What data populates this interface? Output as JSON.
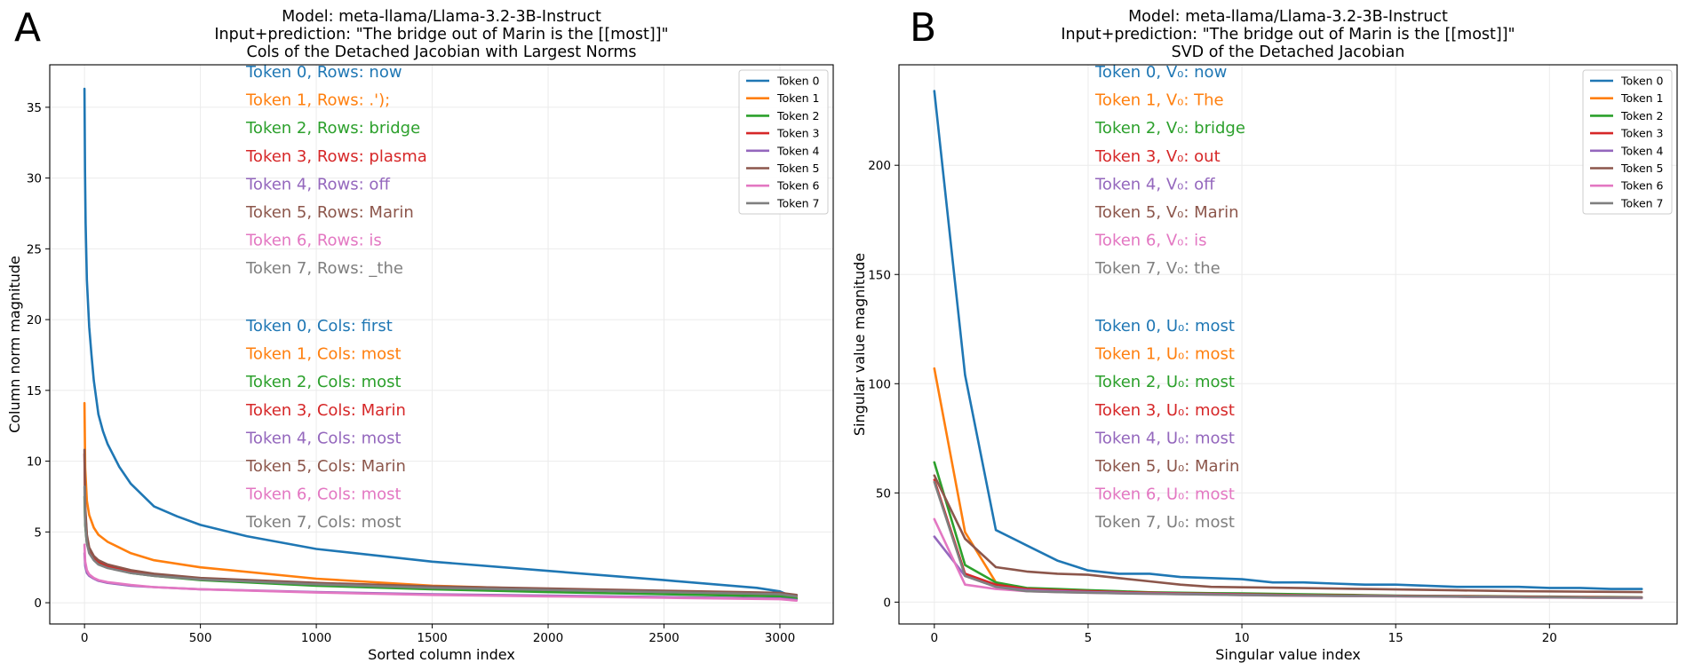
{
  "figure": {
    "panels": [
      "A",
      "B"
    ]
  },
  "chart_data": [
    {
      "type": "line",
      "panel_label": "A",
      "title": [
        "Model: meta-llama/Llama-3.2-3B-Instruct",
        "Input+prediction: \"The bridge out of Marin is the [[most]]\"",
        "Cols of the Detached Jacobian with Largest Norms"
      ],
      "xlabel": "Sorted column index",
      "ylabel": "Column norm magnitude",
      "xlim": [
        -150,
        3230
      ],
      "ylim": [
        -1.5,
        38
      ],
      "xticks": [
        0,
        500,
        1000,
        1500,
        2000,
        2500,
        3000
      ],
      "yticks": [
        0,
        5,
        10,
        15,
        20,
        25,
        30,
        35
      ],
      "grid": true,
      "legend": "top-right",
      "series": [
        {
          "name": "Token 0",
          "color": "#1f77b4",
          "x": [
            0,
            2,
            5,
            10,
            20,
            30,
            40,
            60,
            80,
            100,
            150,
            200,
            300,
            400,
            500,
            700,
            1000,
            1500,
            2000,
            2500,
            2900,
            3000,
            3072
          ],
          "y": [
            36.3,
            30.5,
            26.8,
            22.8,
            19.5,
            17.5,
            15.7,
            13.3,
            12.1,
            11.2,
            9.6,
            8.4,
            6.8,
            6.1,
            5.5,
            4.7,
            3.8,
            2.9,
            2.25,
            1.6,
            1.05,
            0.8,
            0.3
          ]
        },
        {
          "name": "Token 1",
          "color": "#ff7f0e",
          "x": [
            0,
            3,
            10,
            20,
            40,
            60,
            100,
            200,
            300,
            500,
            1000,
            1500,
            2000,
            2500,
            3000,
            3072
          ],
          "y": [
            14.1,
            9.5,
            7.2,
            6.2,
            5.3,
            4.8,
            4.3,
            3.5,
            3.0,
            2.5,
            1.7,
            1.2,
            0.95,
            0.75,
            0.55,
            0.4
          ]
        },
        {
          "name": "Token 2",
          "color": "#2ca02c",
          "x": [
            0,
            3,
            10,
            20,
            40,
            60,
            100,
            200,
            300,
            500,
            1000,
            1500,
            2000,
            2500,
            3000,
            3072
          ],
          "y": [
            7.5,
            5.5,
            4.2,
            3.6,
            3.1,
            2.8,
            2.5,
            2.1,
            1.9,
            1.6,
            1.2,
            0.95,
            0.75,
            0.6,
            0.45,
            0.3
          ]
        },
        {
          "name": "Token 3",
          "color": "#d62728",
          "x": [
            0,
            3,
            10,
            20,
            40,
            60,
            100,
            200,
            300,
            500,
            1000,
            1500,
            2000,
            2500,
            3000,
            3072
          ],
          "y": [
            10.5,
            6.5,
            4.6,
            3.8,
            3.2,
            2.9,
            2.6,
            2.2,
            2.0,
            1.7,
            1.35,
            1.1,
            0.95,
            0.8,
            0.65,
            0.5
          ]
        },
        {
          "name": "Token 4",
          "color": "#9467bd",
          "x": [
            0,
            3,
            10,
            20,
            40,
            60,
            100,
            200,
            300,
            500,
            1000,
            1500,
            2000,
            2500,
            3000,
            3072
          ],
          "y": [
            3.5,
            2.6,
            2.1,
            1.9,
            1.7,
            1.55,
            1.4,
            1.2,
            1.1,
            0.95,
            0.75,
            0.6,
            0.5,
            0.4,
            0.3,
            0.2
          ]
        },
        {
          "name": "Token 5",
          "color": "#8c564b",
          "x": [
            0,
            3,
            10,
            20,
            40,
            60,
            100,
            200,
            300,
            500,
            1000,
            1500,
            2000,
            2500,
            3000,
            3072
          ],
          "y": [
            10.8,
            6.8,
            4.8,
            3.9,
            3.3,
            3.0,
            2.7,
            2.3,
            2.05,
            1.75,
            1.4,
            1.15,
            1.0,
            0.85,
            0.7,
            0.55
          ]
        },
        {
          "name": "Token 6",
          "color": "#e377c2",
          "x": [
            0,
            3,
            10,
            20,
            40,
            60,
            100,
            200,
            300,
            500,
            1000,
            1500,
            2000,
            2500,
            3000,
            3072
          ],
          "y": [
            4.1,
            2.9,
            2.3,
            2.0,
            1.75,
            1.6,
            1.45,
            1.25,
            1.1,
            0.95,
            0.72,
            0.55,
            0.45,
            0.35,
            0.25,
            0.15
          ]
        },
        {
          "name": "Token 7",
          "color": "#7f7f7f",
          "x": [
            0,
            3,
            10,
            20,
            40,
            60,
            100,
            200,
            300,
            500,
            1000,
            1500,
            2000,
            2500,
            3000,
            3072
          ],
          "y": [
            8.2,
            5.6,
            4.2,
            3.5,
            3.0,
            2.7,
            2.45,
            2.1,
            1.9,
            1.65,
            1.3,
            1.05,
            0.9,
            0.75,
            0.6,
            0.45
          ]
        }
      ],
      "annotations": [
        {
          "text": "Token 0, Rows: now",
          "color": "#1f77b4"
        },
        {
          "text": "Token 1, Rows: .');",
          "color": "#ff7f0e"
        },
        {
          "text": "Token 2, Rows: bridge",
          "color": "#2ca02c"
        },
        {
          "text": "Token 3, Rows: plasma",
          "color": "#d62728"
        },
        {
          "text": "Token 4, Rows: off",
          "color": "#9467bd"
        },
        {
          "text": "Token 5, Rows: Marin",
          "color": "#8c564b"
        },
        {
          "text": "Token 6, Rows: is",
          "color": "#e377c2"
        },
        {
          "text": "Token 7, Rows: _the",
          "color": "#7f7f7f"
        },
        {
          "text": "Token 0, Cols: first",
          "color": "#1f77b4"
        },
        {
          "text": "Token 1, Cols: most",
          "color": "#ff7f0e"
        },
        {
          "text": "Token 2, Cols: most",
          "color": "#2ca02c"
        },
        {
          "text": "Token 3, Cols: Marin",
          "color": "#d62728"
        },
        {
          "text": "Token 4, Cols: most",
          "color": "#9467bd"
        },
        {
          "text": "Token 5, Cols: Marin",
          "color": "#8c564b"
        },
        {
          "text": "Token 6, Cols: most",
          "color": "#e377c2"
        },
        {
          "text": "Token 7, Cols: most",
          "color": "#7f7f7f"
        }
      ]
    },
    {
      "type": "line",
      "panel_label": "B",
      "title": [
        "Model: meta-llama/Llama-3.2-3B-Instruct",
        "Input+prediction: \"The bridge out of Marin is the [[most]]\"",
        "SVD of the Detached Jacobian"
      ],
      "xlabel": "Singular value index",
      "ylabel": "Singular value magnitude",
      "xlim": [
        -1.15,
        24.15
      ],
      "ylim": [
        -10,
        246
      ],
      "xticks": [
        0,
        5,
        10,
        15,
        20
      ],
      "yticks": [
        0,
        50,
        100,
        150,
        200
      ],
      "grid": true,
      "legend": "top-right",
      "series": [
        {
          "name": "Token 0",
          "color": "#1f77b4",
          "x": [
            0,
            1,
            2,
            3,
            4,
            5,
            6,
            7,
            8,
            9,
            10,
            11,
            12,
            13,
            14,
            15,
            16,
            17,
            18,
            19,
            20,
            21,
            22,
            23
          ],
          "y": [
            234,
            104,
            33,
            26,
            19,
            14.5,
            13,
            13,
            11.5,
            11,
            10.5,
            9,
            9,
            8.5,
            8,
            8,
            7.5,
            7,
            7,
            7,
            6.5,
            6.5,
            6,
            6
          ]
        },
        {
          "name": "Token 1",
          "color": "#ff7f0e",
          "x": [
            0,
            1,
            2,
            3,
            4,
            5,
            6,
            7,
            8,
            9,
            10,
            11,
            12,
            13,
            14,
            15,
            16,
            17,
            18,
            19,
            20,
            21,
            22,
            23
          ],
          "y": [
            107,
            32,
            9,
            6,
            5.5,
            5,
            4.5,
            4,
            4,
            3.8,
            3.6,
            3.4,
            3.2,
            3,
            3,
            2.8,
            2.6,
            2.5,
            2.4,
            2.3,
            2.2,
            2.1,
            2,
            2
          ]
        },
        {
          "name": "Token 2",
          "color": "#2ca02c",
          "x": [
            0,
            1,
            2,
            3,
            4,
            5,
            6,
            7,
            8,
            9,
            10,
            11,
            12,
            13,
            14,
            15,
            16,
            17,
            18,
            19,
            20,
            21,
            22,
            23
          ],
          "y": [
            64,
            17,
            9,
            6.5,
            6,
            5.5,
            5,
            4.5,
            4.3,
            4.1,
            4,
            3.8,
            3.6,
            3.4,
            3.2,
            3,
            2.9,
            2.8,
            2.7,
            2.6,
            2.5,
            2.4,
            2.3,
            2.2
          ]
        },
        {
          "name": "Token 3",
          "color": "#d62728",
          "x": [
            0,
            1,
            2,
            3,
            4,
            5,
            6,
            7,
            8,
            9,
            10,
            11,
            12,
            13,
            14,
            15,
            16,
            17,
            18,
            19,
            20,
            21,
            22,
            23
          ],
          "y": [
            56,
            13,
            8,
            6,
            5.5,
            5,
            4.6,
            4.3,
            4,
            3.8,
            3.6,
            3.4,
            3.2,
            3.1,
            3,
            2.9,
            2.8,
            2.7,
            2.6,
            2.5,
            2.4,
            2.3,
            2.2,
            2.1
          ]
        },
        {
          "name": "Token 4",
          "color": "#9467bd",
          "x": [
            0,
            1,
            2,
            3,
            4,
            5,
            6,
            7,
            8,
            9,
            10,
            11,
            12,
            13,
            14,
            15,
            16,
            17,
            18,
            19,
            20,
            21,
            22,
            23
          ],
          "y": [
            30,
            12,
            7,
            5.5,
            5,
            4.6,
            4.3,
            4,
            3.8,
            3.6,
            3.4,
            3.2,
            3,
            2.9,
            2.8,
            2.7,
            2.6,
            2.5,
            2.4,
            2.3,
            2.2,
            2.1,
            2,
            2
          ]
        },
        {
          "name": "Token 5",
          "color": "#8c564b",
          "x": [
            0,
            1,
            2,
            3,
            4,
            5,
            6,
            7,
            8,
            9,
            10,
            11,
            12,
            13,
            14,
            15,
            16,
            17,
            18,
            19,
            20,
            21,
            22,
            23
          ],
          "y": [
            58,
            29,
            16,
            14,
            13,
            12.5,
            11,
            9.5,
            8,
            7,
            6.8,
            6.6,
            6.4,
            6.2,
            6,
            5.8,
            5.6,
            5.4,
            5.2,
            5,
            4.9,
            4.8,
            4.7,
            4.6
          ]
        },
        {
          "name": "Token 6",
          "color": "#e377c2",
          "x": [
            0,
            1,
            2,
            3,
            4,
            5,
            6,
            7,
            8,
            9,
            10,
            11,
            12,
            13,
            14,
            15,
            16,
            17,
            18,
            19,
            20,
            21,
            22,
            23
          ],
          "y": [
            38,
            8,
            6,
            5,
            4.6,
            4.3,
            4,
            3.8,
            3.6,
            3.4,
            3.2,
            3,
            2.9,
            2.8,
            2.7,
            2.6,
            2.5,
            2.4,
            2.3,
            2.2,
            2.1,
            2,
            1.9,
            1.8
          ]
        },
        {
          "name": "Token 7",
          "color": "#7f7f7f",
          "x": [
            0,
            1,
            2,
            3,
            4,
            5,
            6,
            7,
            8,
            9,
            10,
            11,
            12,
            13,
            14,
            15,
            16,
            17,
            18,
            19,
            20,
            21,
            22,
            23
          ],
          "y": [
            55,
            12,
            7,
            5,
            4.6,
            4.3,
            4,
            3.8,
            3.6,
            3.4,
            3.2,
            3.1,
            3,
            2.9,
            2.8,
            2.7,
            2.6,
            2.5,
            2.4,
            2.3,
            2.2,
            2.1,
            2,
            2
          ]
        }
      ],
      "annotations": [
        {
          "text": "Token 0, V₀: now",
          "color": "#1f77b4"
        },
        {
          "text": "Token 1, V₀: The",
          "color": "#ff7f0e"
        },
        {
          "text": "Token 2, V₀: bridge",
          "color": "#2ca02c"
        },
        {
          "text": "Token 3, V₀: out",
          "color": "#d62728"
        },
        {
          "text": "Token 4, V₀: off",
          "color": "#9467bd"
        },
        {
          "text": "Token 5, V₀: Marin",
          "color": "#8c564b"
        },
        {
          "text": "Token 6, V₀: is",
          "color": "#e377c2"
        },
        {
          "text": "Token 7, V₀: the",
          "color": "#7f7f7f"
        },
        {
          "text": "Token 0, U₀: most",
          "color": "#1f77b4"
        },
        {
          "text": "Token 1, U₀: most",
          "color": "#ff7f0e"
        },
        {
          "text": "Token 2, U₀: most",
          "color": "#2ca02c"
        },
        {
          "text": "Token 3, U₀: most",
          "color": "#d62728"
        },
        {
          "text": "Token 4, U₀: most",
          "color": "#9467bd"
        },
        {
          "text": "Token 5, U₀: Marin",
          "color": "#8c564b"
        },
        {
          "text": "Token 6, U₀: most",
          "color": "#e377c2"
        },
        {
          "text": "Token 7, U₀: most",
          "color": "#7f7f7f"
        }
      ]
    }
  ]
}
